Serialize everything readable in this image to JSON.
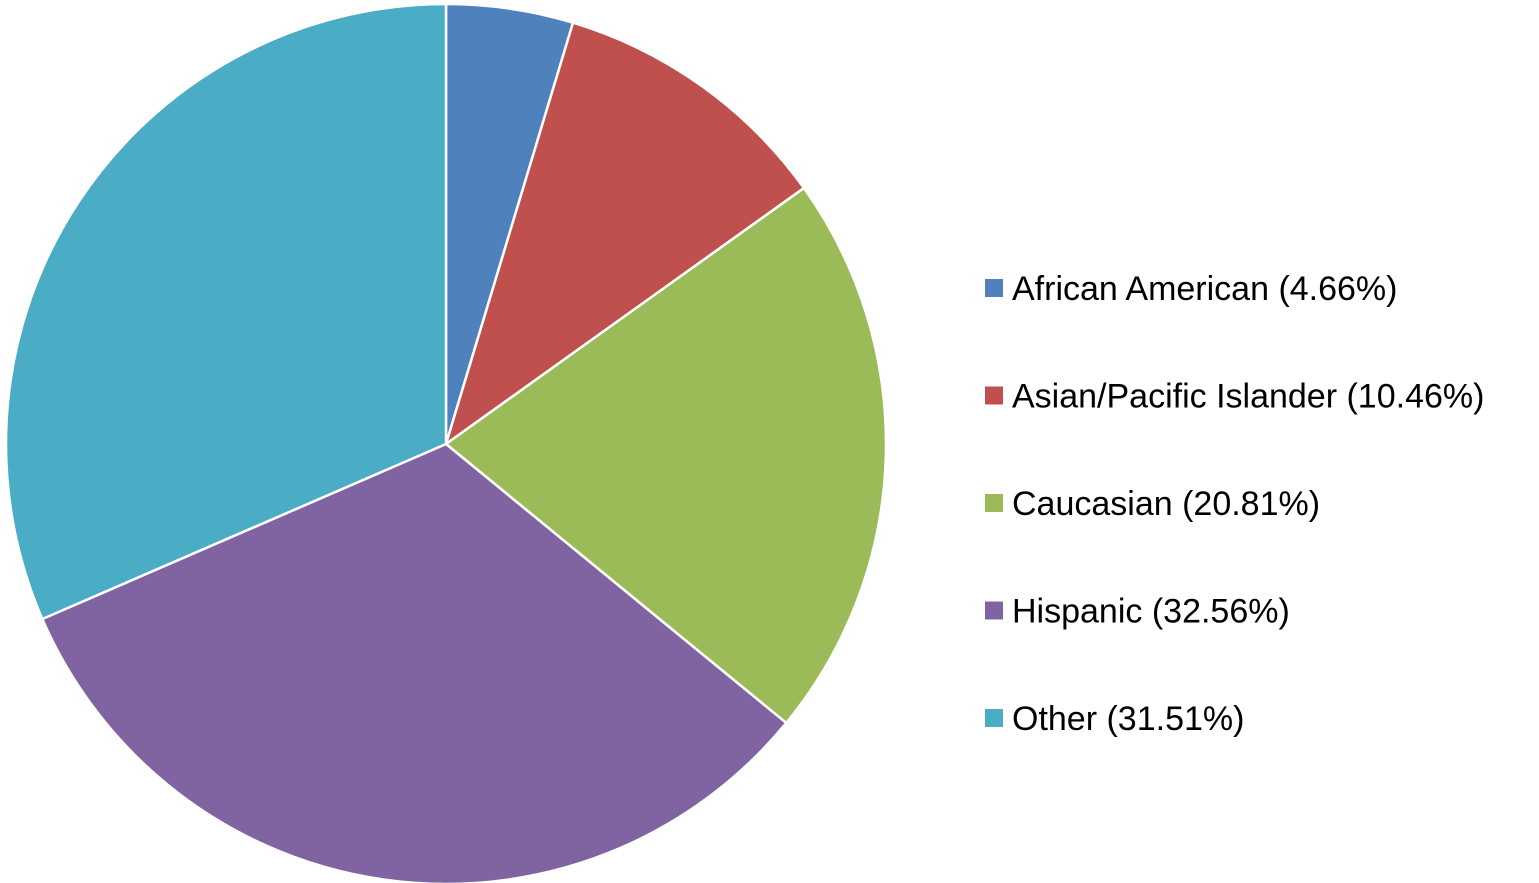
{
  "chart_data": {
    "type": "pie",
    "title": "",
    "legend_position": "right",
    "slices": [
      {
        "label": "African American (4.66%)",
        "value": 4.66,
        "color": "#4F81BD"
      },
      {
        "label": "Asian/Pacific Islander (10.46%)",
        "value": 10.46,
        "color": "#C0504D"
      },
      {
        "label": "Caucasian (20.81%)",
        "value": 20.81,
        "color": "#9BBB59"
      },
      {
        "label": "Hispanic (32.56%)",
        "value": 32.56,
        "color": "#8064A2"
      },
      {
        "label": "Other (31.51%)",
        "value": 31.51,
        "color": "#4BACC6"
      }
    ]
  }
}
